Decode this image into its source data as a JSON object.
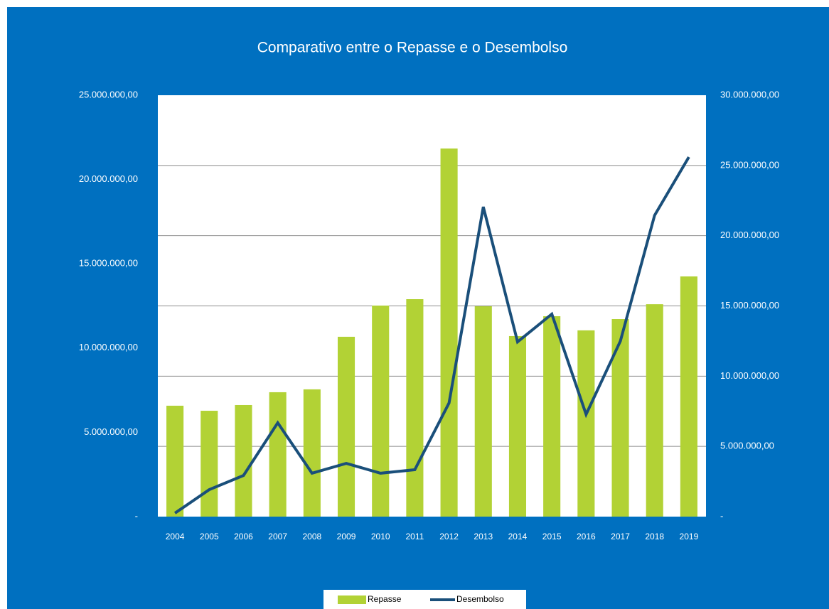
{
  "chart_data": {
    "type": "bar_line",
    "title": "Comparativo entre o Repasse e o Desembolso",
    "categories": [
      "2004",
      "2005",
      "2006",
      "2007",
      "2008",
      "2009",
      "2010",
      "2011",
      "2012",
      "2013",
      "2014",
      "2015",
      "2016",
      "2017",
      "2018",
      "2019"
    ],
    "series": [
      {
        "name": "Repasse",
        "type": "bar",
        "color": "#b2d235",
        "axis": "y",
        "values": [
          6580000,
          6280000,
          6620000,
          7380000,
          7550000,
          10670000,
          12520000,
          12900000,
          21840000,
          12480000,
          10710000,
          11890000,
          11050000,
          11720000,
          12600000,
          14250000
        ]
      },
      {
        "name": "Desembolso",
        "type": "line",
        "color": "#1a4f7a",
        "axis": "y2",
        "values": [
          250000,
          1920000,
          2930000,
          6680000,
          3090000,
          3790000,
          3090000,
          3340000,
          8090000,
          22050000,
          12440000,
          14420000,
          7280000,
          12490000,
          21450000,
          25600000
        ]
      }
    ],
    "ylim": [
      0,
      25000000
    ],
    "yticks": [
      {
        "value": 0,
        "label": "-"
      },
      {
        "value": 5000000,
        "label": "5.000.000,00"
      },
      {
        "value": 10000000,
        "label": "10.000.000,00"
      },
      {
        "value": 15000000,
        "label": "15.000.000,00"
      },
      {
        "value": 20000000,
        "label": "20.000.000,00"
      },
      {
        "value": 25000000,
        "label": "25.000.000,00"
      }
    ],
    "y2lim": [
      0,
      30000000
    ],
    "y2ticks": [
      {
        "value": 0,
        "label": "-"
      },
      {
        "value": 5000000,
        "label": "5.000.000,00"
      },
      {
        "value": 10000000,
        "label": "10.000.000,00"
      },
      {
        "value": 15000000,
        "label": "15.000.000,00"
      },
      {
        "value": 20000000,
        "label": "20.000.000,00"
      },
      {
        "value": 25000000,
        "label": "25.000.000,00"
      },
      {
        "value": 30000000,
        "label": "30.000.000,00"
      }
    ],
    "grid": "y2",
    "legend": "bottom"
  }
}
